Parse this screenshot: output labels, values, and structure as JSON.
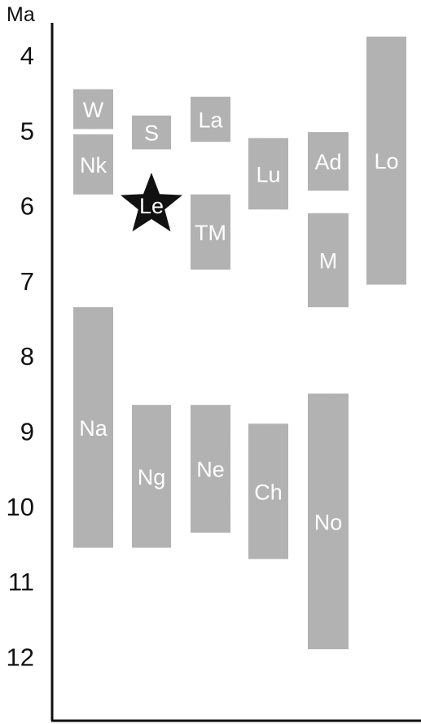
{
  "chart_data": {
    "type": "range-bar",
    "yunit": "Ma",
    "ylim": [
      3.4,
      12.5
    ],
    "yticks": [
      "4",
      "5",
      "6",
      "7",
      "8",
      "9",
      "10",
      "11",
      "12"
    ],
    "grid": false,
    "bar_color": "#b0b0b0",
    "marker_color": "#111111",
    "columns": [
      {
        "bars": [
          {
            "label": "W",
            "start": 4.45,
            "end": 4.98
          },
          {
            "label": "Nk",
            "start": 5.05,
            "end": 5.85
          },
          {
            "label": "Na",
            "start": 7.35,
            "end": 10.55
          }
        ]
      },
      {
        "bars": [
          {
            "label": "S",
            "start": 4.8,
            "end": 5.25
          },
          {
            "label": "Ng",
            "start": 8.65,
            "end": 10.55
          }
        ]
      },
      {
        "bars": [
          {
            "label": "La",
            "start": 4.55,
            "end": 5.15
          },
          {
            "label": "TM",
            "start": 5.85,
            "end": 6.85
          },
          {
            "label": "Ne",
            "start": 8.65,
            "end": 10.35
          }
        ]
      },
      {
        "bars": [
          {
            "label": "Lu",
            "start": 5.1,
            "end": 6.05
          },
          {
            "label": "Ch",
            "start": 8.9,
            "end": 10.7
          }
        ]
      },
      {
        "bars": [
          {
            "label": "Ad",
            "start": 5.02,
            "end": 5.8
          },
          {
            "label": "M",
            "start": 6.1,
            "end": 7.35
          },
          {
            "label": "No",
            "start": 8.5,
            "end": 11.9
          }
        ]
      },
      {
        "bars": [
          {
            "label": "Lo",
            "start": 3.75,
            "end": 7.05
          }
        ]
      }
    ],
    "marker": {
      "label": "Le",
      "shape": "star",
      "column": 1,
      "value": 5.95
    }
  }
}
